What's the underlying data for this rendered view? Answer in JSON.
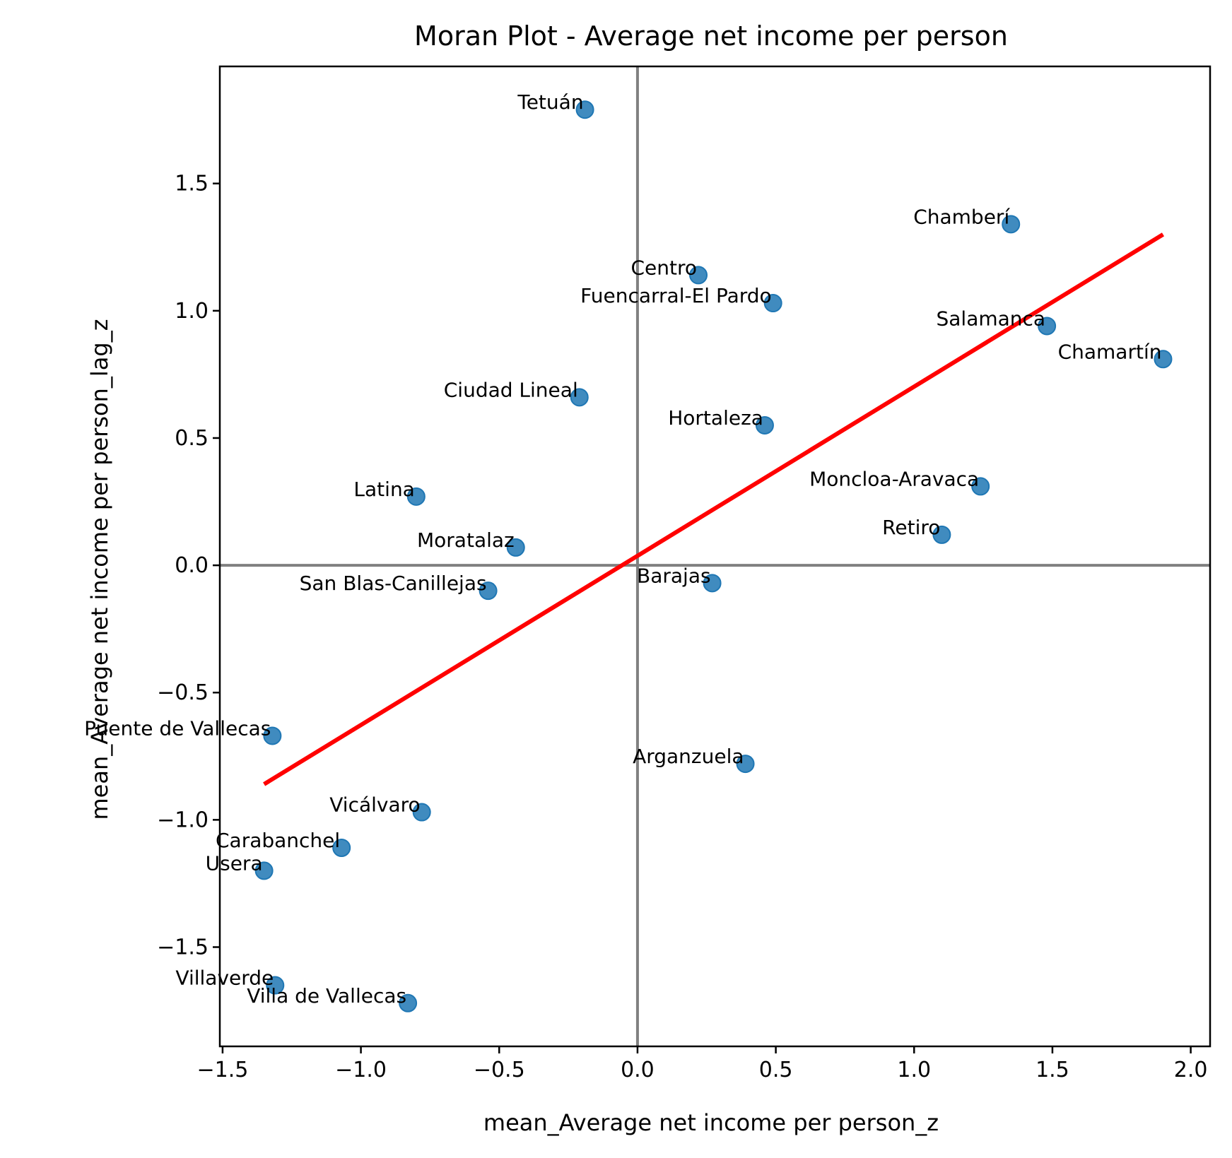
{
  "chart_data": {
    "type": "scatter",
    "title": "Moran Plot - Average net income per person",
    "xlabel": "mean_Average net income per person_z",
    "ylabel": "mean_Average net income per person_lag_z",
    "xlim": [
      -1.51,
      2.07
    ],
    "ylim": [
      -1.89,
      1.96
    ],
    "xticks": [
      {
        "value": -1.5,
        "label": "−1.5"
      },
      {
        "value": -1.0,
        "label": "−1.0"
      },
      {
        "value": -0.5,
        "label": "−0.5"
      },
      {
        "value": 0.0,
        "label": "0.0"
      },
      {
        "value": 0.5,
        "label": "0.5"
      },
      {
        "value": 1.0,
        "label": "1.0"
      },
      {
        "value": 1.5,
        "label": "1.5"
      },
      {
        "value": 2.0,
        "label": "2.0"
      }
    ],
    "yticks": [
      {
        "value": -1.5,
        "label": "−1.5"
      },
      {
        "value": -1.0,
        "label": "−1.0"
      },
      {
        "value": -0.5,
        "label": "−0.5"
      },
      {
        "value": 0.0,
        "label": "0.0"
      },
      {
        "value": 0.5,
        "label": "0.5"
      },
      {
        "value": 1.0,
        "label": "1.0"
      },
      {
        "value": 1.5,
        "label": "1.5"
      }
    ],
    "reference_lines": {
      "x": 0.0,
      "y": 0.0,
      "color": "#808080"
    },
    "regression_line": {
      "x": [
        -1.35,
        1.9
      ],
      "y": [
        -0.86,
        1.3
      ],
      "color": "#ff0000"
    },
    "point_color": "#1f77b4",
    "grid": false,
    "points": [
      {
        "label": "Tetuán",
        "x": -0.19,
        "y": 1.79
      },
      {
        "label": "Chamberí",
        "x": 1.35,
        "y": 1.34
      },
      {
        "label": "Centro",
        "x": 0.22,
        "y": 1.14
      },
      {
        "label": "Fuencarral-El Pardo",
        "x": 0.49,
        "y": 1.03
      },
      {
        "label": "Salamanca",
        "x": 1.48,
        "y": 0.94
      },
      {
        "label": "Chamartín",
        "x": 1.9,
        "y": 0.81
      },
      {
        "label": "Ciudad Lineal",
        "x": -0.21,
        "y": 0.66
      },
      {
        "label": "Hortaleza",
        "x": 0.46,
        "y": 0.55
      },
      {
        "label": "Moncloa-Aravaca",
        "x": 1.24,
        "y": 0.31
      },
      {
        "label": "Latina",
        "x": -0.8,
        "y": 0.27
      },
      {
        "label": "Retiro",
        "x": 1.1,
        "y": 0.12
      },
      {
        "label": "Moratalaz",
        "x": -0.44,
        "y": 0.07
      },
      {
        "label": "San Blas-Canillejas",
        "x": -0.54,
        "y": -0.1
      },
      {
        "label": "Barajas",
        "x": 0.27,
        "y": -0.07
      },
      {
        "label": "Puente de Vallecas",
        "x": -1.32,
        "y": -0.67
      },
      {
        "label": "Arganzuela",
        "x": 0.39,
        "y": -0.78
      },
      {
        "label": "Vicálvaro",
        "x": -0.78,
        "y": -0.97
      },
      {
        "label": "Carabanchel",
        "x": -1.07,
        "y": -1.11
      },
      {
        "label": "Usera",
        "x": -1.35,
        "y": -1.2
      },
      {
        "label": "Villaverde",
        "x": -1.31,
        "y": -1.65
      },
      {
        "label": "Villa de Vallecas",
        "x": -0.83,
        "y": -1.72
      }
    ]
  }
}
